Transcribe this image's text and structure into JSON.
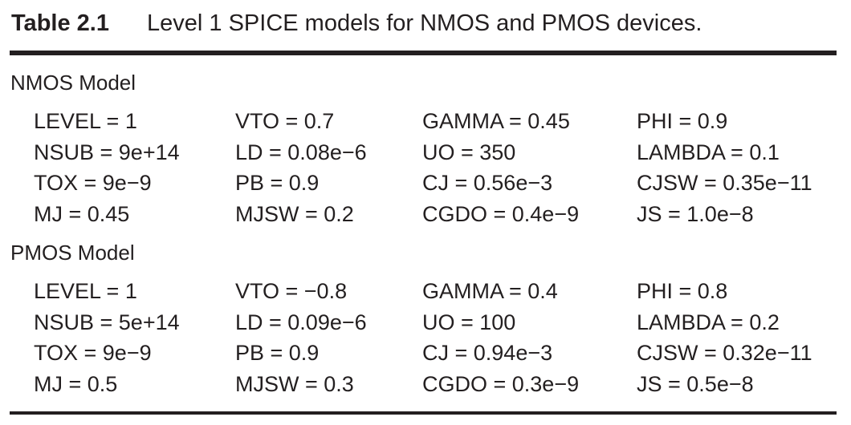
{
  "header": {
    "label": "Table 2.1",
    "title": "Level 1 SPICE models for NMOS and PMOS devices."
  },
  "sections": [
    {
      "title": "NMOS Model",
      "rows": [
        [
          "LEVEL = 1",
          "VTO = 0.7",
          "GAMMA = 0.45",
          "PHI = 0.9"
        ],
        [
          "NSUB = 9e+14",
          "LD = 0.08e−6",
          "UO = 350",
          "LAMBDA = 0.1"
        ],
        [
          "TOX = 9e−9",
          "PB = 0.9",
          "CJ = 0.56e−3",
          "CJSW = 0.35e−11"
        ],
        [
          "MJ = 0.45",
          "MJSW = 0.2",
          "CGDO = 0.4e−9",
          "JS = 1.0e−8"
        ]
      ]
    },
    {
      "title": "PMOS Model",
      "rows": [
        [
          "LEVEL = 1",
          "VTO = −0.8",
          "GAMMA = 0.4",
          "PHI = 0.8"
        ],
        [
          "NSUB = 5e+14",
          "LD = 0.09e−6",
          "UO = 100",
          "LAMBDA = 0.2"
        ],
        [
          "TOX = 9e−9",
          "PB = 0.9",
          "CJ = 0.94e−3",
          "CJSW = 0.32e−11"
        ],
        [
          "MJ = 0.5",
          "MJSW = 0.3",
          "CGDO = 0.3e−9",
          "JS = 0.5e−8"
        ]
      ]
    }
  ]
}
